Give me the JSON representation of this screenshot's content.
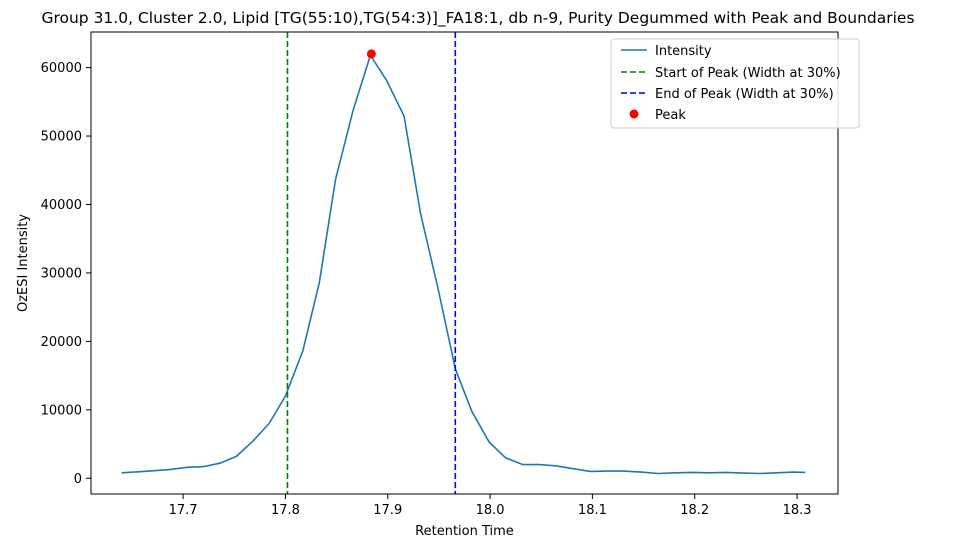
{
  "chart_data": {
    "type": "line",
    "title": "Group 31.0, Cluster 2.0, Lipid [TG(55:10),TG(54:3)]_FA18:1, db n-9, Purity Degummed with Peak and Boundaries",
    "xlabel": "Retention Time",
    "ylabel": "OzESI Intensity",
    "xlim": [
      17.61,
      18.34
    ],
    "ylim": [
      -2300,
      65200
    ],
    "x_ticks": [
      17.7,
      17.8,
      17.9,
      18.0,
      18.1,
      18.2,
      18.3
    ],
    "x_tick_labels": [
      "17.7",
      "17.8",
      "17.9",
      "18.0",
      "18.1",
      "18.2",
      "18.3"
    ],
    "y_ticks": [
      0,
      10000,
      20000,
      30000,
      40000,
      50000,
      60000
    ],
    "y_tick_labels": [
      "0",
      "10000",
      "20000",
      "30000",
      "40000",
      "50000",
      "60000"
    ],
    "grid": false,
    "legend_position": "top-right",
    "series": [
      {
        "name": "Intensity",
        "color": "#1f77b4",
        "x": [
          17.64,
          17.656,
          17.672,
          17.688,
          17.704,
          17.72,
          17.736,
          17.752,
          17.768,
          17.784,
          17.8,
          17.817,
          17.833,
          17.849,
          17.866,
          17.883,
          17.899,
          17.916,
          17.932,
          17.949,
          17.966,
          17.982,
          17.999,
          18.015,
          18.032,
          18.048,
          18.065,
          18.081,
          18.098,
          18.115,
          18.131,
          18.148,
          18.164,
          18.181,
          18.198,
          18.214,
          18.231,
          18.247,
          18.264,
          18.28,
          18.297,
          18.308
        ],
        "y": [
          800,
          950,
          1100,
          1300,
          1600,
          1700,
          2200,
          3200,
          5400,
          8000,
          12000,
          18600,
          28500,
          43700,
          53700,
          61800,
          58100,
          52900,
          38700,
          27800,
          16000,
          9800,
          5300,
          3000,
          2000,
          2000,
          1800,
          1400,
          1000,
          1050,
          1050,
          900,
          700,
          800,
          850,
          800,
          850,
          750,
          700,
          800,
          900,
          850
        ]
      }
    ],
    "vlines": [
      {
        "name": "Start of Peak (Width at 30%)",
        "x": 17.802,
        "color": "#008000",
        "style": "dashed"
      },
      {
        "name": "End of Peak (Width at 30%)",
        "x": 17.966,
        "color": "#0000ff",
        "style": "dashed"
      }
    ],
    "points": [
      {
        "name": "Peak",
        "x": 17.884,
        "y": 62000,
        "color": "#ff0000"
      }
    ]
  }
}
